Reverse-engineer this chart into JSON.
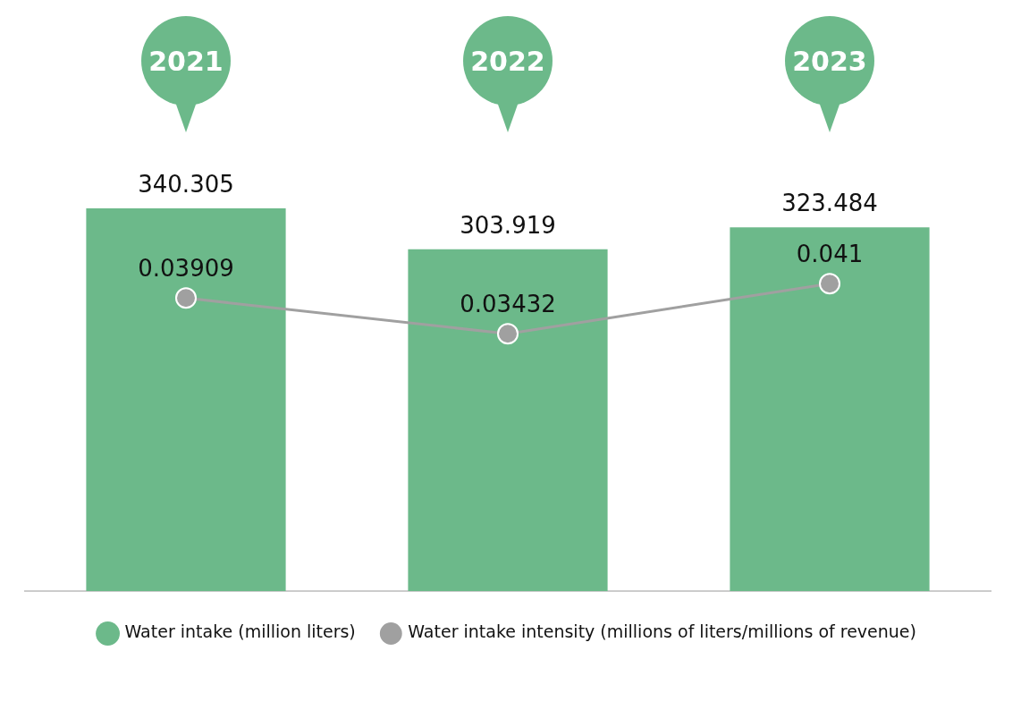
{
  "chart_data": {
    "type": "bar",
    "categories": [
      "2021",
      "2022",
      "2023"
    ],
    "series": [
      {
        "name": "Water intake (million liters)",
        "color": "#6cb98a",
        "values": [
          340.305,
          303.919,
          323.484
        ]
      },
      {
        "name": "Water intake intensity (millions of liters/millions of revenue)",
        "type": "line",
        "axis": "y2",
        "color": "#a0a0a0",
        "values": [
          0.03909,
          0.03432,
          0.041
        ]
      }
    ],
    "data_labels": true,
    "legend": "bottom",
    "marker": "circle"
  }
}
